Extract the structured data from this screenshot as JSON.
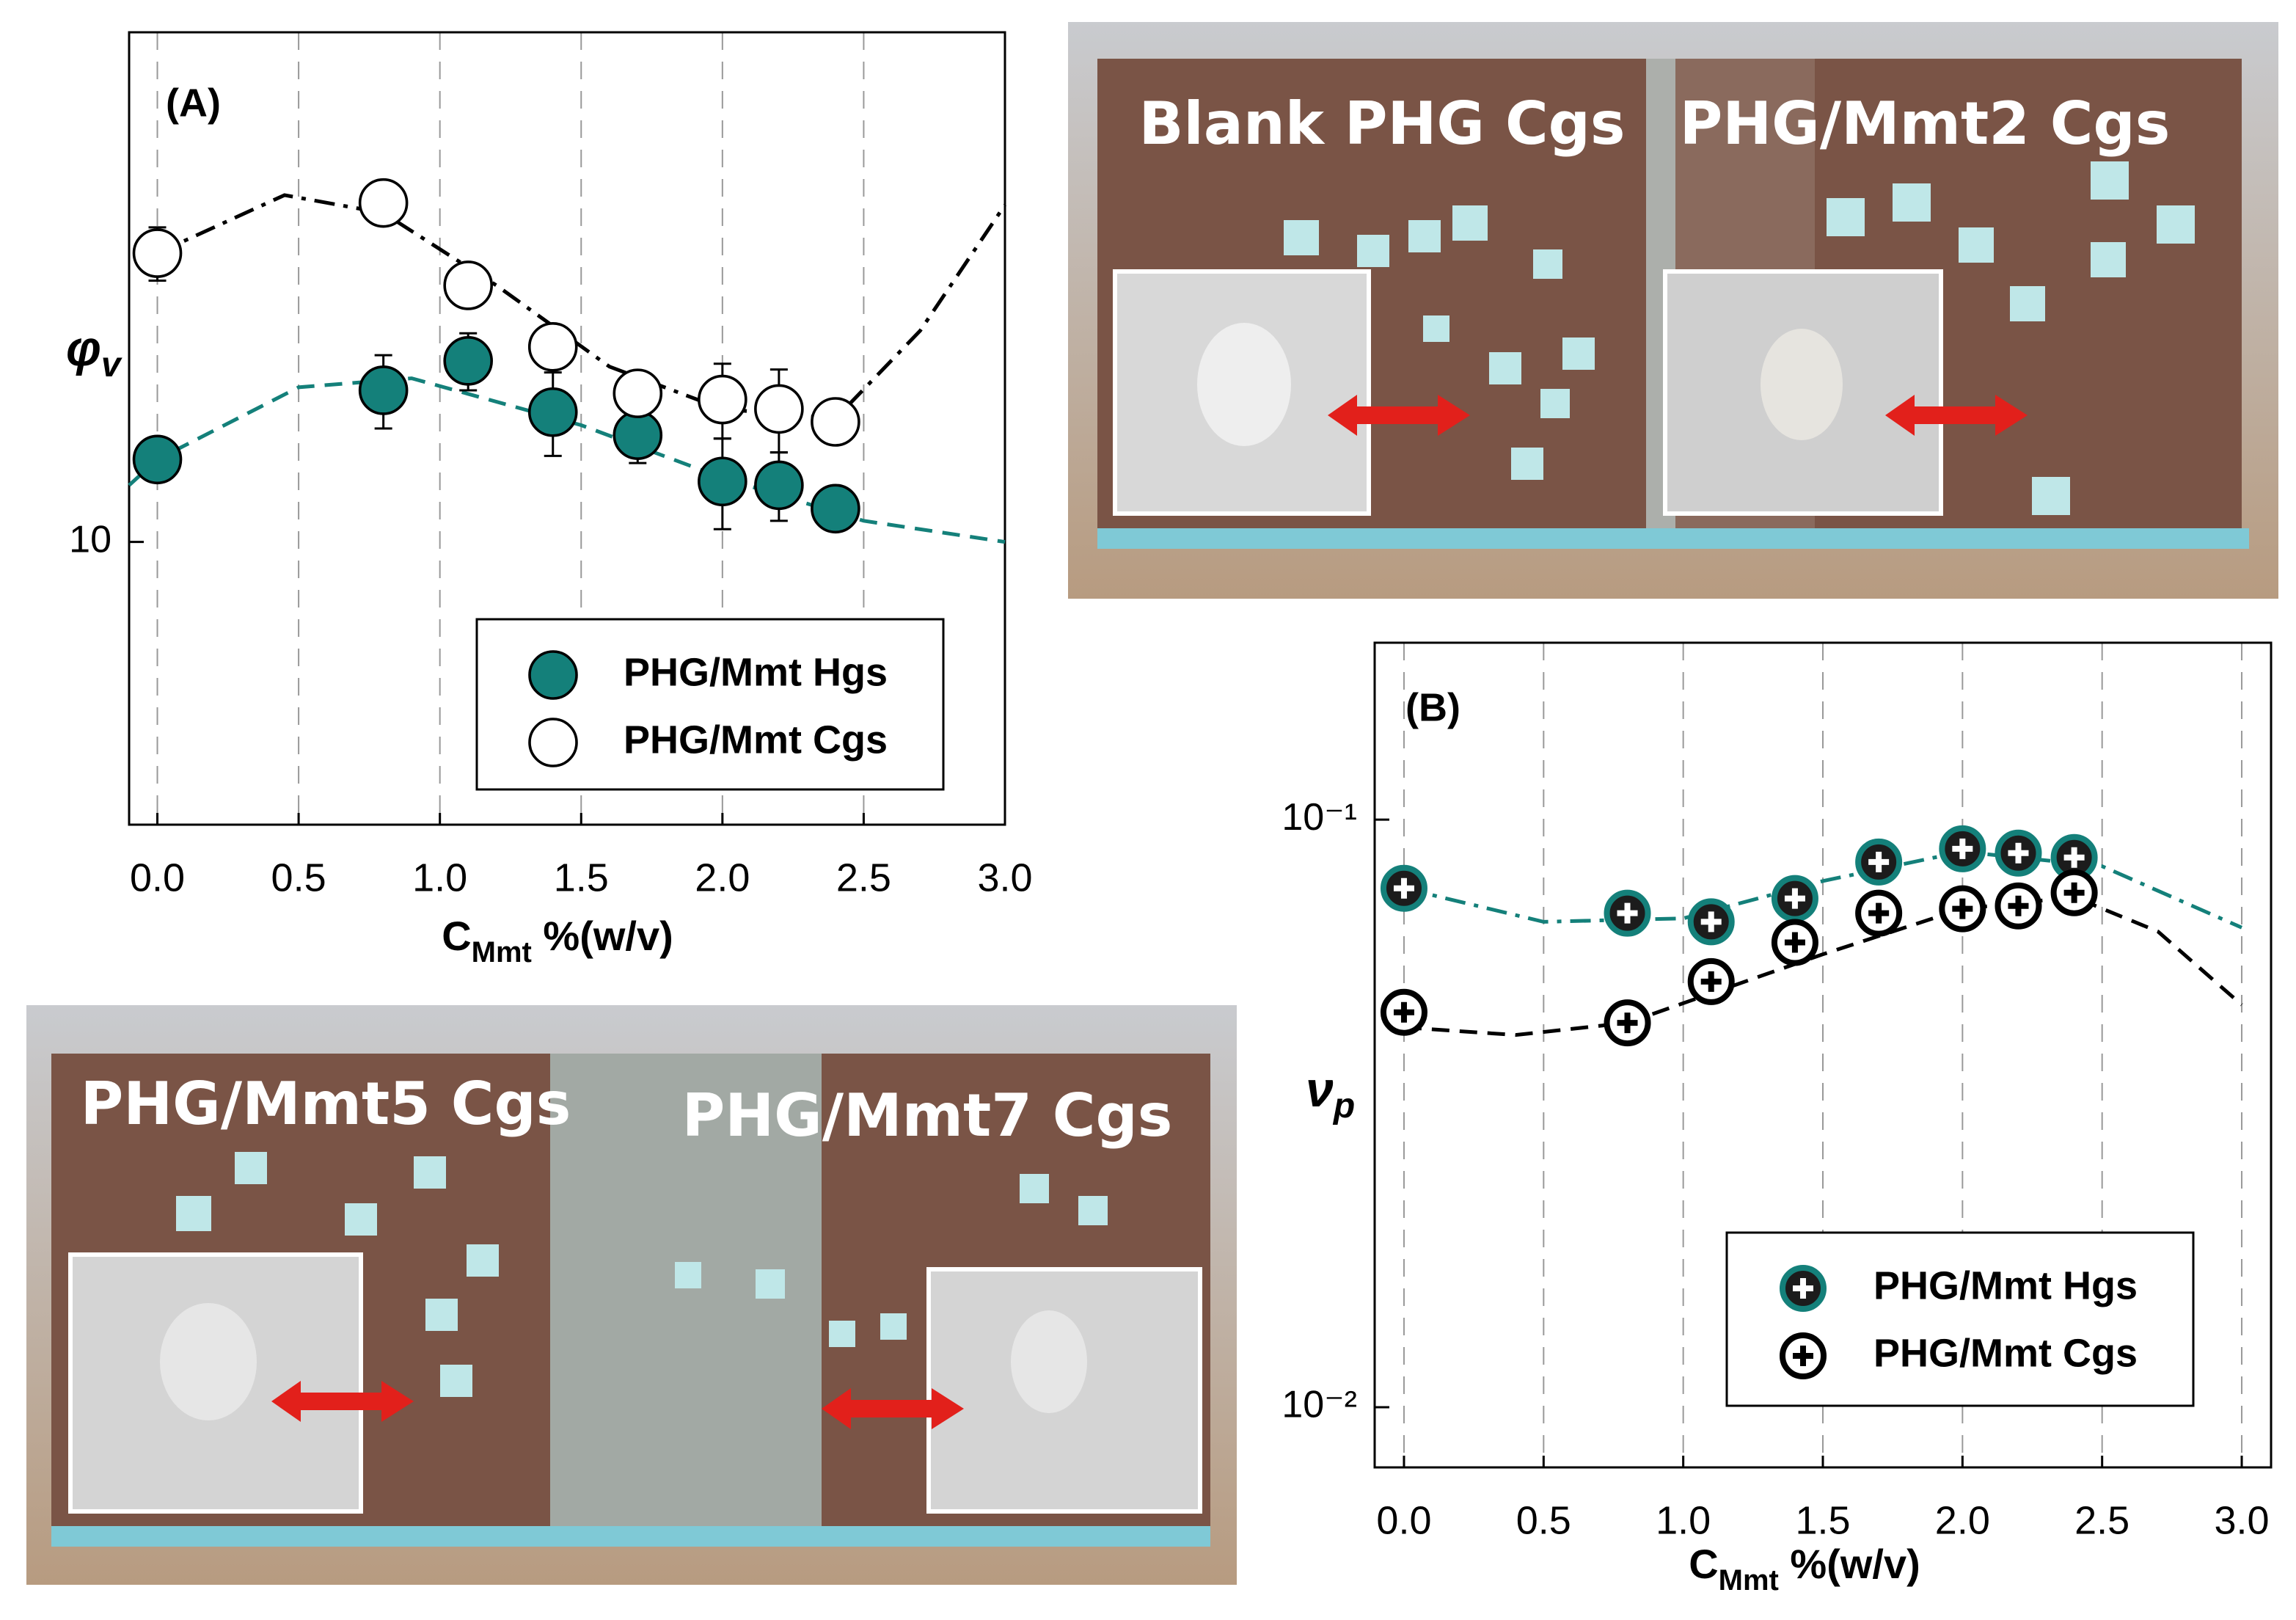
{
  "chart_data": [
    {
      "type": "scatter",
      "annotation": "(A)",
      "y_label": "φ",
      "y_label_sub": "v",
      "x_label": "C",
      "x_label_sub": "Mmt",
      "x_label_suffix": " %(w/v)",
      "xlim": [
        -0.1,
        3.0
      ],
      "ylim": [
        5.2,
        32.5
      ],
      "log_y": true,
      "grid": true,
      "xticks": [
        {
          "value": 0,
          "label": "0.0"
        },
        0.5,
        {
          "value": 1,
          "label": "1.0"
        },
        1.5,
        {
          "value": 2,
          "label": "2.0"
        },
        2.5,
        {
          "value": 3,
          "label": "3.0"
        }
      ],
      "yticks": [
        10
      ],
      "x": [
        0,
        0.8,
        1.1,
        1.4,
        1.7,
        2.0,
        2.2,
        2.4
      ],
      "series": [
        {
          "name": "PHG/Mmt Hgs",
          "color": "#000000",
          "fill": "#14807a",
          "values": [
            12.1,
            14.2,
            15.2,
            13.5,
            12.8,
            11.5,
            11.4,
            10.8
          ],
          "errors": [
            0.3,
            1.2,
            1.0,
            1.3,
            0.8,
            1.2,
            0.9,
            0.4
          ]
        },
        {
          "name": "PHG/Mmt Cgs",
          "color": "#000000",
          "fill": "#ffffff",
          "values": [
            19.5,
            21.9,
            18.1,
            15.7,
            14.1,
            13.9,
            13.6,
            13.2
          ],
          "errors": [
            1.2,
            1.0,
            0.5,
            0.7,
            0.5,
            1.2,
            1.3,
            0.5
          ]
        }
      ],
      "fits": [
        {
          "color": "#14807a",
          "style": "dash",
          "x": [
            -0.1,
            0,
            0.5,
            0.9,
            1.5,
            2.0,
            2.5,
            3.0
          ],
          "values": [
            11.4,
            12.1,
            14.3,
            14.6,
            13.1,
            11.6,
            10.5,
            10.0
          ]
        },
        {
          "color": "#000000",
          "style": "dashdot",
          "x": [
            0,
            0.45,
            0.8,
            1.2,
            1.6,
            2.0,
            2.4,
            2.7,
            3.0
          ],
          "values": [
            19.5,
            22.3,
            21.4,
            18.1,
            15.0,
            13.6,
            13.3,
            16.3,
            21.8
          ]
        }
      ]
    },
    {
      "type": "scatter",
      "annotation": "(B)",
      "y_label": "ν",
      "y_label_sub": "p",
      "x_label": "C",
      "x_label_sub": "Mmt",
      "x_label_suffix": " %(w/v)",
      "xlim": [
        -0.105,
        3.105
      ],
      "ylim": [
        0.0079,
        0.2
      ],
      "log_y": true,
      "grid": true,
      "xticks": [
        {
          "value": 0,
          "label": "0.0"
        },
        0.5,
        {
          "value": 1,
          "label": "1.0"
        },
        1.5,
        {
          "value": 2,
          "label": "2.0"
        },
        2.5,
        {
          "value": 3,
          "label": "3.0"
        }
      ],
      "yticks": [
        {
          "value": 0.1,
          "label": "10⁻¹"
        },
        {
          "value": 0.01,
          "label": "10⁻²"
        }
      ],
      "x": [
        0,
        0.8,
        1.1,
        1.4,
        1.7,
        2.0,
        2.2,
        2.4
      ],
      "series": [
        {
          "name": "PHG/Mmt Hgs",
          "color": "#14807a",
          "fill": "#1c1c1c",
          "cross": "#ffffff",
          "values": [
            0.0764,
            0.0693,
            0.067,
            0.0734,
            0.0847,
            0.0892,
            0.0877,
            0.0862
          ]
        },
        {
          "name": "PHG/Mmt Cgs",
          "color": "#000000",
          "fill": "#ffffff",
          "cross": "#000000",
          "values": [
            0.047,
            0.0451,
            0.053,
            0.0618,
            0.0693,
            0.0705,
            0.0713,
            0.0751
          ]
        }
      ],
      "fits": [
        {
          "color": "#14807a",
          "style": "dashdot",
          "x": [
            0,
            0.5,
            1.0,
            1.5,
            2.0,
            2.5,
            3.0
          ],
          "values": [
            0.0764,
            0.067,
            0.0679,
            0.0786,
            0.0882,
            0.0833,
            0.0655
          ]
        },
        {
          "color": "#000000",
          "style": "dash",
          "x": [
            0,
            0.4,
            0.8,
            1.5,
            2.0,
            2.4,
            2.7,
            3.0
          ],
          "values": [
            0.0443,
            0.043,
            0.0451,
            0.059,
            0.0705,
            0.0738,
            0.0645,
            0.0484
          ]
        }
      ]
    }
  ],
  "photos": [
    {
      "label": "Blank PHG Cgs"
    },
    {
      "label": "PHG/Mmt2 Cgs"
    },
    {
      "label": "PHG/Mmt5 Cgs"
    },
    {
      "label": "PHG/Mmt7 Cgs"
    }
  ]
}
